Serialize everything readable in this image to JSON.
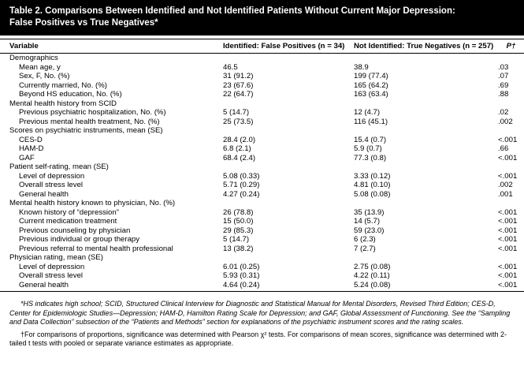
{
  "title": {
    "line1": "Table 2. Comparisons Between Identified and Not Identified Patients Without Current Major Depression:",
    "line2": "False Positives vs True Negatives*"
  },
  "header": [
    "Variable",
    "Identified: False Positives (n = 34)",
    "Not Identified: True Negatives (n = 257)",
    "P†"
  ],
  "sections": [
    {
      "title": "Demographics",
      "rows": [
        [
          "Mean age, y",
          "46.5",
          "38.9",
          ".03"
        ],
        [
          "Sex, F, No. (%)",
          "31 (91.2)",
          "199 (77.4)",
          ".07"
        ],
        [
          "Currently married, No. (%)",
          "23 (67.6)",
          "165 (64.2)",
          ".69"
        ],
        [
          "Beyond HS education, No. (%)",
          "22 (64.7)",
          "163 (63.4)",
          ".88"
        ]
      ]
    },
    {
      "title": "Mental health history from SCID",
      "rows": [
        [
          "Previous psychiatric hospitalization, No. (%)",
          "5 (14.7)",
          "12 (4.7)",
          ".02"
        ],
        [
          "Previous mental health treatment, No. (%)",
          "25 (73.5)",
          "116 (45.1)",
          ".002"
        ]
      ]
    },
    {
      "title": "Scores on psychiatric instruments, mean (SE)",
      "rows": [
        [
          "CES-D",
          "28.4 (2.0)",
          "15.4 (0.7)",
          "<.001"
        ],
        [
          "HAM-D",
          "6.8 (2.1)",
          "5.9 (0.7)",
          ".66"
        ],
        [
          "GAF",
          "68.4 (2.4)",
          "77.3 (0.8)",
          "<.001"
        ]
      ]
    },
    {
      "title": "Patient self-rating, mean (SE)",
      "rows": [
        [
          "Level of depression",
          "5.08 (0.33)",
          "3.33 (0.12)",
          "<.001"
        ],
        [
          "Overall stress level",
          "5.71 (0.29)",
          "4.81 (0.10)",
          ".002"
        ],
        [
          "General health",
          "4.27 (0.24)",
          "5.08 (0.08)",
          ".001"
        ]
      ]
    },
    {
      "title": "Mental health history known to physician, No. (%)",
      "rows": [
        [
          "Known history of “depression”",
          "26 (78.8)",
          "35 (13.9)",
          "<.001"
        ],
        [
          "Current medication treatment",
          "15 (50.0)",
          "14 (5.7)",
          "<.001"
        ],
        [
          "Previous counseling by physician",
          "29 (85.3)",
          "59 (23.0)",
          "<.001"
        ],
        [
          "Previous individual or group therapy",
          "5 (14.7)",
          "6 (2.3)",
          "<.001"
        ],
        [
          "Previous referral to mental health professional",
          "13 (38.2)",
          "7 (2.7)",
          "<.001"
        ]
      ]
    },
    {
      "title": "Physician rating, mean (SE)",
      "rows": [
        [
          "Level of depression",
          "6.01 (0.25)",
          "2.75 (0.08)",
          "<.001"
        ],
        [
          "Overall stress level",
          "5.93 (0.31)",
          "4.22 (0.11)",
          "<.001"
        ],
        [
          "General health",
          "4.64 (0.24)",
          "5.24 (0.08)",
          "<.001"
        ]
      ]
    }
  ],
  "footnotes": [
    "*HS indicates high school; SCID, Structured Clinical Interview for Diagnostic and Statistical Manual for Mental Disorders, Revised Third Edition; CES-D, Center for Epidemiologic Studies—Depression; HAM-D, Hamilton Rating Scale for Depression; and GAF, Global Assessment of Functioning. See the “Sampling and Data Collection” subsection of the “Patients and Methods” section for explanations of the psychiatric instrument scores and the rating scales.",
    "†For comparisons of proportions, significance was determined with Pearson χ² tests. For comparisons of mean scores, significance was determined with 2-tailed t tests with pooled or separate variance estimates as appropriate."
  ]
}
